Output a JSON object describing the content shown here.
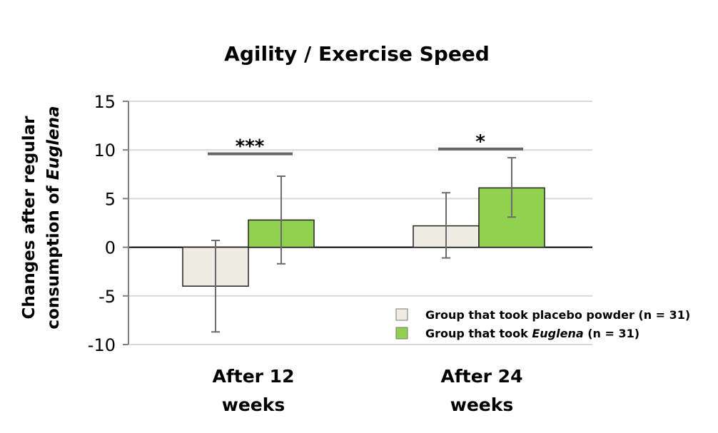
{
  "chart_data": {
    "type": "bar",
    "title": "Agility / Exercise Speed",
    "ylabel_line1": "Changes after regular",
    "ylabel_line2_prefix": "consumption of ",
    "ylabel_line2_italic": "Euglena",
    "categories": [
      {
        "line1": "After 12",
        "line2": "weeks"
      },
      {
        "line1": "After 24",
        "line2": "weeks"
      }
    ],
    "ylim": [
      -10,
      15
    ],
    "yticks": [
      -10,
      -5,
      0,
      5,
      10,
      15
    ],
    "grid": true,
    "legend_position": "bottom-right",
    "series": [
      {
        "name_prefix": "Group that took placebo powder (n = 31)",
        "name_italic": "",
        "name_suffix": "",
        "color": "#efede3",
        "values": [
          -4.0,
          2.2
        ],
        "err_low": [
          -8.7,
          -1.1
        ],
        "err_high": [
          0.7,
          5.6
        ]
      },
      {
        "name_prefix": "Group that took ",
        "name_italic": "Euglena",
        "name_suffix": " (n = 31)",
        "color": "#92d050",
        "values": [
          2.8,
          6.1
        ],
        "err_low": [
          -1.7,
          3.1
        ],
        "err_high": [
          7.3,
          9.2
        ]
      }
    ],
    "significance": [
      {
        "category": 0,
        "label": "***",
        "y": 9.6
      },
      {
        "category": 1,
        "label": "*",
        "y": 10.1
      }
    ]
  }
}
